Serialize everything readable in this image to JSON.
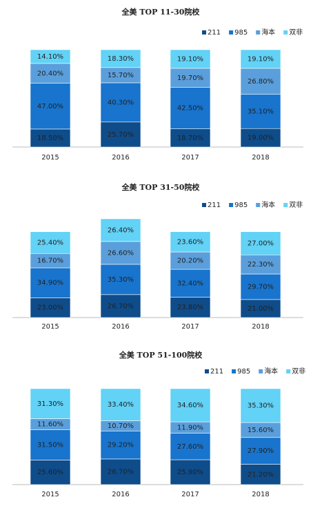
{
  "chart_data": [
    {
      "type": "stacked_bar",
      "title": "全美 TOP 11-30院校",
      "categories": [
        "2015",
        "2016",
        "2017",
        "2018"
      ],
      "series": [
        {
          "name": "211",
          "color": "#0f4c8a",
          "values": [
            18.5,
            25.7,
            18.7,
            19.0
          ],
          "value_labels": [
            "18.50%",
            "25.70%",
            "18.70%",
            "19.00%"
          ]
        },
        {
          "name": "985",
          "color": "#1874cd",
          "values": [
            47.0,
            40.3,
            42.5,
            35.1
          ],
          "value_labels": [
            "47.00%",
            "40.30%",
            "42.50%",
            "35.10%"
          ]
        },
        {
          "name": "海本",
          "color": "#5a9fdc",
          "values": [
            20.4,
            15.7,
            19.7,
            26.8
          ],
          "value_labels": [
            "20.40%",
            "15.70%",
            "19.70%",
            "26.80%"
          ]
        },
        {
          "name": "双非",
          "color": "#62d2f6",
          "values": [
            14.1,
            18.3,
            19.1,
            19.1
          ],
          "value_labels": [
            "14.10%",
            "18.30%",
            "19.10%",
            "19.10%"
          ]
        }
      ]
    },
    {
      "type": "stacked_bar",
      "title": "全美 TOP 31-50院校",
      "categories": [
        "2015",
        "2016",
        "2017",
        "2018"
      ],
      "series": [
        {
          "name": "211",
          "color": "#0f4c8a",
          "values": [
            23.0,
            26.7,
            23.8,
            21.0
          ],
          "value_labels": [
            "23.00%",
            "26.70%",
            "23.80%",
            "21.00%"
          ]
        },
        {
          "name": "985",
          "color": "#1874cd",
          "values": [
            34.9,
            35.3,
            32.4,
            29.7
          ],
          "value_labels": [
            "34.90%",
            "35.30%",
            "32.40%",
            "29.70%"
          ]
        },
        {
          "name": "海本",
          "color": "#5a9fdc",
          "values": [
            16.7,
            26.6,
            20.2,
            22.3
          ],
          "value_labels": [
            "16.70%",
            "26.60%",
            "20.20%",
            "22.30%"
          ]
        },
        {
          "name": "双非",
          "color": "#62d2f6",
          "values": [
            25.4,
            26.4,
            23.6,
            27.0
          ],
          "value_labels": [
            "25.40%",
            "26.40%",
            "23.60%",
            "27.00%"
          ]
        }
      ]
    },
    {
      "type": "stacked_bar",
      "title": "全美 TOP 51-100院校",
      "categories": [
        "2015",
        "2016",
        "2017",
        "2018"
      ],
      "series": [
        {
          "name": "211",
          "color": "#0f4c8a",
          "values": [
            25.6,
            26.7,
            25.9,
            21.2
          ],
          "value_labels": [
            "25.60%",
            "26.70%",
            "25.90%",
            "21.20%"
          ]
        },
        {
          "name": "985",
          "color": "#1874cd",
          "values": [
            31.5,
            29.2,
            27.6,
            27.9
          ],
          "value_labels": [
            "31.50%",
            "29.20%",
            "27.60%",
            "27.90%"
          ]
        },
        {
          "name": "海本",
          "color": "#5a9fdc",
          "values": [
            11.6,
            10.7,
            11.9,
            15.6
          ],
          "value_labels": [
            "11.60%",
            "10.70%",
            "11.90%",
            "15.60%"
          ]
        },
        {
          "name": "双非",
          "color": "#62d2f6",
          "values": [
            31.3,
            33.4,
            34.6,
            35.3
          ],
          "value_labels": [
            "31.30%",
            "33.40%",
            "34.60%",
            "35.30%"
          ]
        }
      ]
    }
  ]
}
